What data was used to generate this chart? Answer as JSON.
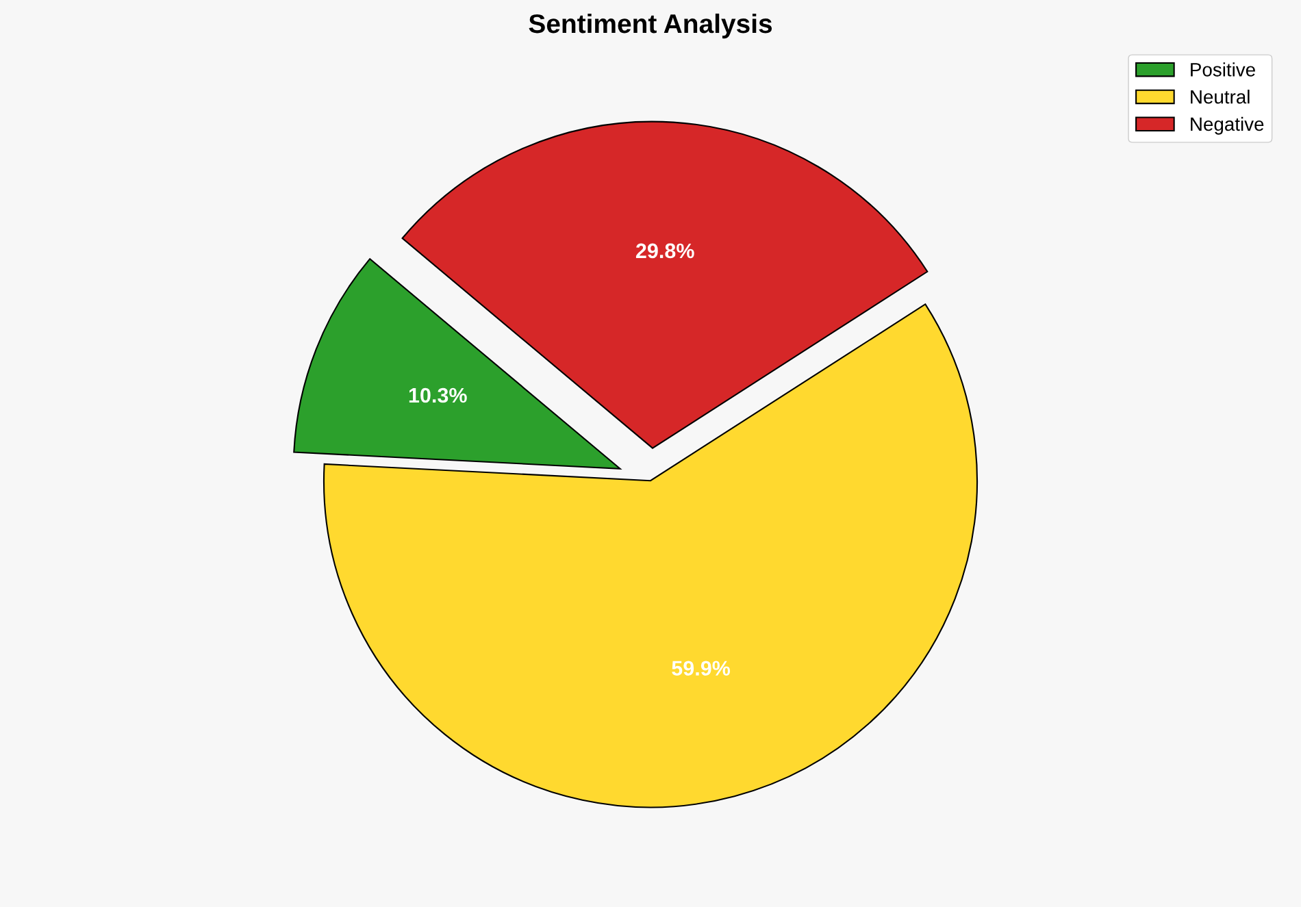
{
  "chart_data": {
    "type": "pie",
    "title": "Sentiment Analysis",
    "categories": [
      "Positive",
      "Neutral",
      "Negative"
    ],
    "values": [
      10.3,
      59.9,
      29.8
    ],
    "colors": [
      "#2ca02c",
      "#ffd92f",
      "#d62728"
    ],
    "value_labels": [
      "10.3%",
      "59.9%",
      "29.8%"
    ],
    "legend": "top right"
  }
}
